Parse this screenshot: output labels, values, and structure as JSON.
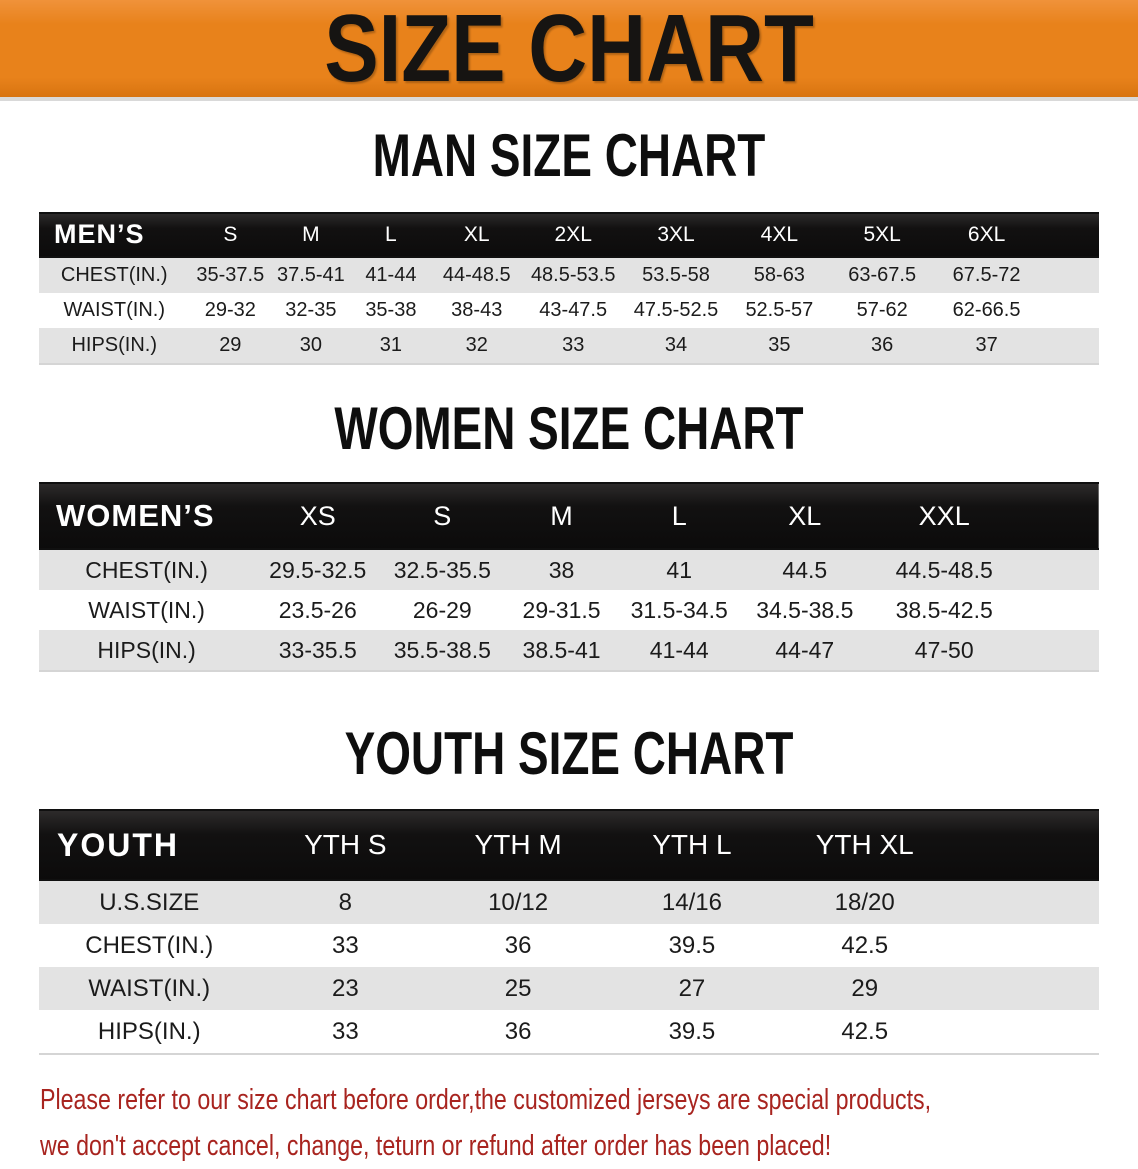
{
  "banner": {
    "title": "SIZE CHART"
  },
  "colors": {
    "banner_orange": "#E8821B",
    "table_header_black": "#121111",
    "row_gray": "#E3E3E3",
    "note_red": "#A8241F"
  },
  "sections": {
    "men": {
      "heading": "MAN SIZE CHART",
      "table": {
        "label": "MEN’S",
        "columns": [
          "S",
          "M",
          "L",
          "XL",
          "2XL",
          "3XL",
          "4XL",
          "5XL",
          "6XL"
        ],
        "rows": [
          {
            "label": "CHEST(IN.)",
            "values": [
              "35-37.5",
              "37.5-41",
              "41-44",
              "44-48.5",
              "48.5-53.5",
              "53.5-58",
              "58-63",
              "63-67.5",
              "67.5-72"
            ]
          },
          {
            "label": "WAIST(IN.)",
            "values": [
              "29-32",
              "32-35",
              "35-38",
              "38-43",
              "43-47.5",
              "47.5-52.5",
              "52.5-57",
              "57-62",
              "62-66.5"
            ]
          },
          {
            "label": "HIPS(IN.)",
            "values": [
              "29",
              "30",
              "31",
              "32",
              "33",
              "34",
              "35",
              "36",
              "37"
            ]
          }
        ]
      }
    },
    "women": {
      "heading": "WOMEN SIZE CHART",
      "table": {
        "label": "WOMEN’S",
        "columns": [
          "XS",
          "S",
          "M",
          "L",
          "XL",
          "XXL"
        ],
        "rows": [
          {
            "label": "CHEST(IN.)",
            "values": [
              "29.5-32.5",
              "32.5-35.5",
              "38",
              "41",
              "44.5",
              "44.5-48.5"
            ]
          },
          {
            "label": "WAIST(IN.)",
            "values": [
              "23.5-26",
              "26-29",
              "29-31.5",
              "31.5-34.5",
              "34.5-38.5",
              "38.5-42.5"
            ]
          },
          {
            "label": "HIPS(IN.)",
            "values": [
              "33-35.5",
              "35.5-38.5",
              "38.5-41",
              "41-44",
              "44-47",
              "47-50"
            ]
          }
        ]
      }
    },
    "youth": {
      "heading": "YOUTH SIZE CHART",
      "table": {
        "label": "YOUTH",
        "columns": [
          "YTH S",
          "YTH M",
          "YTH L",
          "YTH XL"
        ],
        "rows": [
          {
            "label": "U.S.SIZE",
            "values": [
              "8",
              "10/12",
              "14/16",
              "18/20"
            ]
          },
          {
            "label": "CHEST(IN.)",
            "values": [
              "33",
              "36",
              "39.5",
              "42.5"
            ]
          },
          {
            "label": "WAIST(IN.)",
            "values": [
              "23",
              "25",
              "27",
              "29"
            ]
          },
          {
            "label": "HIPS(IN.)",
            "values": [
              "33",
              "36",
              "39.5",
              "42.5"
            ]
          }
        ]
      }
    }
  },
  "note": {
    "line1": "Please refer to our size chart before order,the customized jerseys are special products,",
    "line2": "we don't accept cancel, change, teturn or refund after order has been placed!"
  }
}
